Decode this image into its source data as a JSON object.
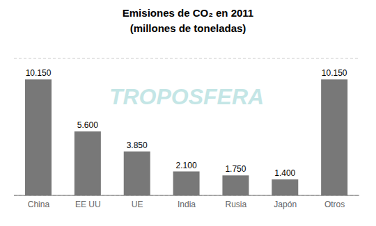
{
  "chart_data": {
    "type": "bar",
    "title": "Emisiones de CO₂ en 2011",
    "subtitle": "(millones de toneladas)",
    "categories": [
      "China",
      "EE UU",
      "UE",
      "India",
      "Rusia",
      "Japón",
      "Otros"
    ],
    "values": [
      10150,
      5600,
      3850,
      2100,
      1750,
      1400,
      10150
    ],
    "value_labels": [
      "10.150",
      "5.600",
      "3.850",
      "2.100",
      "1.750",
      "1.400",
      "10.150"
    ],
    "data_labels": true,
    "color": "#787878",
    "ylim": [
      0,
      12000
    ],
    "yticks": [
      0,
      2000,
      4000,
      6000,
      8000,
      10000,
      12000
    ],
    "grid": true,
    "tick_labels": "x",
    "annotations": [
      {
        "text": "TROPOSFERA",
        "color": "#7EC8C8"
      }
    ]
  }
}
